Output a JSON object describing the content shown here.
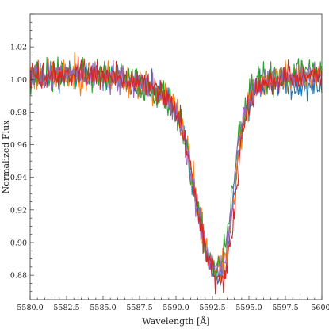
{
  "chart_data": {
    "type": "line",
    "title": "",
    "xlabel": "Wavelength [Å]",
    "ylabel": "Normalized Flux",
    "xlim": [
      5580.0,
      5600.0
    ],
    "ylim": [
      0.865,
      1.04
    ],
    "xticks": [
      5580.0,
      5582.5,
      5585.0,
      5587.5,
      5590.0,
      5592.5,
      5595.0,
      5597.5,
      5600.0
    ],
    "xtick_labels": [
      "5580.0",
      "5582.5",
      "5585.0",
      "5587.5",
      "5590.0",
      "5592.5",
      "5595.0",
      "5597.5",
      "5600."
    ],
    "yticks": [
      0.88,
      0.9,
      0.92,
      0.94,
      0.96,
      0.98,
      1.0,
      1.02
    ],
    "ytick_labels": [
      "0.88",
      "0.90",
      "0.92",
      "0.94",
      "0.96",
      "0.98",
      "1.00",
      "1.02"
    ],
    "grid": false,
    "legend": "none",
    "line_profile": {
      "x": [
        5580.0,
        5582.0,
        5584.0,
        5586.0,
        5587.5,
        5588.5,
        5589.5,
        5590.0,
        5590.5,
        5591.0,
        5591.5,
        5592.0,
        5592.5,
        5592.9,
        5593.3,
        5593.7,
        5594.0,
        5594.3,
        5594.7,
        5595.2,
        5595.7,
        5596.5,
        5597.5,
        5598.5,
        5600.0
      ],
      "y": [
        1.002,
        1.003,
        1.003,
        1.001,
        0.998,
        0.994,
        0.987,
        0.98,
        0.966,
        0.944,
        0.917,
        0.897,
        0.882,
        0.878,
        0.884,
        0.904,
        0.93,
        0.956,
        0.978,
        0.991,
        0.997,
        1.0,
        1.001,
        1.002,
        1.003
      ]
    },
    "series": [
      {
        "color": "#1f77b4",
        "noise": 0.006,
        "shift": 0.0,
        "depth": 1.0,
        "seed": 11,
        "tilt": -0.008
      },
      {
        "color": "#ff7f0e",
        "noise": 0.007,
        "shift": 0.05,
        "depth": 0.97,
        "seed": 23,
        "tilt": 0.0
      },
      {
        "color": "#2ca02c",
        "noise": 0.007,
        "shift": -0.1,
        "depth": 0.95,
        "seed": 37,
        "tilt": 0.004
      },
      {
        "color": "#9467bd",
        "noise": 0.006,
        "shift": -0.05,
        "depth": 0.98,
        "seed": 51,
        "tilt": 0.0
      },
      {
        "color": "#d62728",
        "noise": 0.006,
        "shift": 0.1,
        "depth": 1.02,
        "seed": 73,
        "tilt": 0.0
      }
    ]
  }
}
